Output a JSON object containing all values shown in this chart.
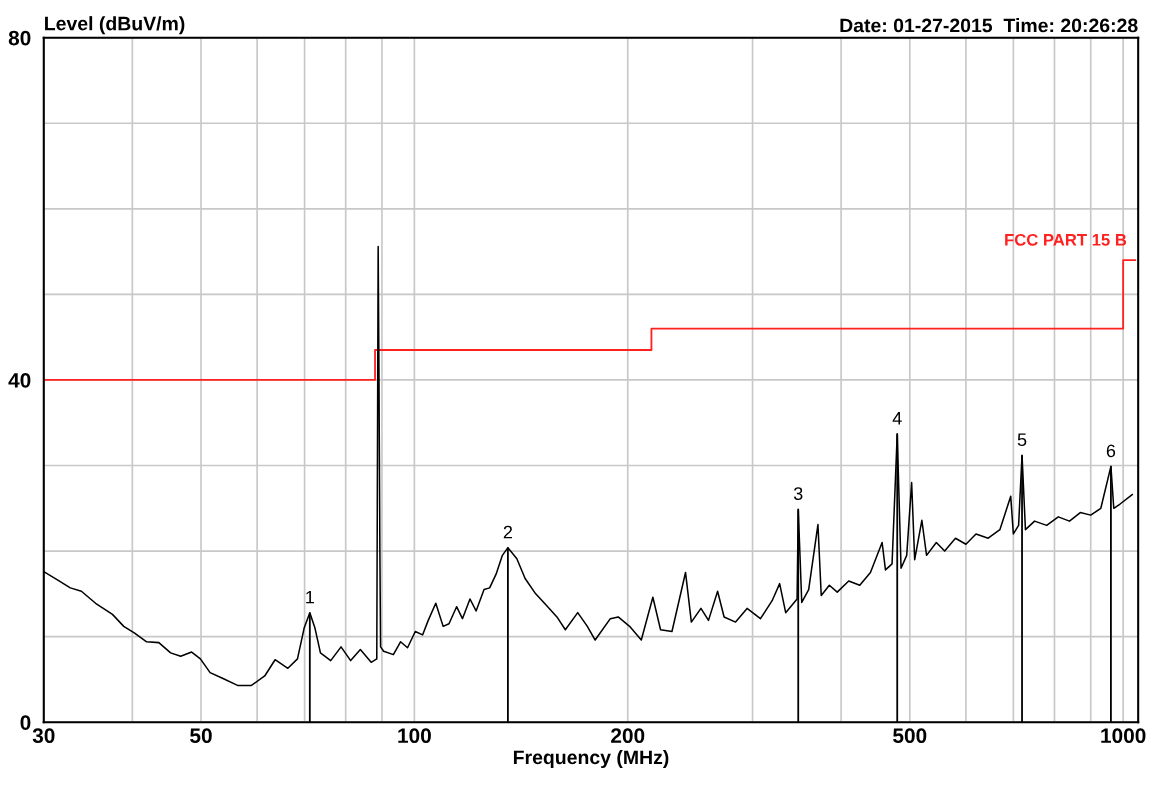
{
  "chart_data": {
    "type": "line",
    "title": "Date: 01-27-2015  Time: 20:26:28",
    "ylabel": "Level (dBuV/m)",
    "xlabel": "Frequency (MHz)",
    "log": "x",
    "xlim": [
      30,
      1050
    ],
    "xticks": [
      30,
      {
        "value": 40,
        "label": null
      },
      50,
      {
        "value": 60,
        "label": null
      },
      {
        "value": 70,
        "label": null
      },
      {
        "value": 80,
        "label": null
      },
      {
        "value": 90,
        "label": null
      },
      100,
      200,
      {
        "value": 300,
        "label": null
      },
      {
        "value": 400,
        "label": null
      },
      500,
      {
        "value": 600,
        "label": null
      },
      {
        "value": 700,
        "label": null
      },
      {
        "value": 800,
        "label": null
      },
      {
        "value": 900,
        "label": null
      },
      1000
    ],
    "ylim": [
      0,
      80
    ],
    "yticks": [
      0,
      {
        "value": 10,
        "label": null
      },
      {
        "value": 20,
        "label": null
      },
      {
        "value": 30,
        "label": null
      },
      40,
      {
        "value": 50,
        "label": null
      },
      {
        "value": 60,
        "label": null
      },
      {
        "value": 70,
        "label": null
      },
      80
    ],
    "grid": true,
    "legend": false,
    "marker": "none",
    "line_style": "solid",
    "series": [
      {
        "color": "#000000",
        "x": [
          30,
          31.4,
          32.7,
          33.9,
          35.5,
          37.5,
          38.9,
          40.3,
          41.9,
          43.6,
          45.3,
          46.8,
          48.5,
          49.9,
          51.5,
          53.7,
          56.3,
          58.9,
          61.5,
          63.6,
          66.3,
          68.4,
          69.9,
          71.2,
          72.4,
          73.7,
          76.2,
          78.8,
          81.3,
          83.9,
          86.9,
          88.5,
          88.7,
          88.9,
          89.1,
          89.4,
          89.6,
          90.5,
          93.4,
          95.6,
          97.8,
          100.3,
          102.7,
          104.6,
          107.2,
          109.8,
          111.9,
          114.7,
          116.9,
          119.8,
          122.2,
          125.4,
          127.7,
          130.4,
          133.1,
          135.5,
          139.5,
          143.3,
          148.3,
          153.4,
          158.9,
          163.3,
          170,
          175.4,
          179.9,
          189,
          193.9,
          201.2,
          209,
          217,
          222.5,
          230.9,
          241.3,
          245.9,
          253.7,
          260,
          267.8,
          273.5,
          283.9,
          294.7,
          307.8,
          319.7,
          327.6,
          334.1,
          346.7,
          348,
          352,
          360,
          371,
          375,
          385,
          395,
          410,
          425,
          440,
          457,
          462,
          472,
          480,
          486,
          495,
          503,
          508,
          520,
          528,
          545,
          560,
          580,
          600,
          620,
          645,
          670,
          694,
          700,
          712,
          720,
          728,
          750,
          780,
          810,
          840,
          870,
          900,
          930,
          961,
          970,
          990,
          1030
        ],
        "values": [
          17.6,
          16.6,
          15.7,
          15.3,
          13.9,
          12.6,
          11.2,
          10.4,
          9.4,
          9.3,
          8.1,
          7.7,
          8.2,
          7.4,
          5.8,
          5.1,
          4.3,
          4.3,
          5.4,
          7.3,
          6.3,
          7.4,
          11.0,
          12.8,
          11.0,
          8.1,
          7.2,
          8.8,
          7.2,
          8.5,
          7.0,
          7.4,
          31.5,
          55.6,
          43.0,
          20.0,
          8.8,
          8.3,
          7.9,
          9.4,
          8.7,
          10.6,
          10.2,
          11.9,
          13.9,
          11.2,
          11.5,
          13.5,
          12.1,
          14.4,
          13.0,
          15.5,
          15.7,
          17.3,
          19.5,
          20.4,
          19.1,
          16.8,
          15.0,
          13.7,
          12.3,
          10.8,
          12.8,
          11.2,
          9.6,
          12.1,
          12.3,
          11.2,
          9.6,
          14.6,
          10.8,
          10.6,
          17.5,
          11.7,
          13.3,
          11.9,
          15.3,
          12.3,
          11.7,
          13.3,
          12.1,
          14.2,
          16.2,
          12.8,
          14.4,
          24.9,
          14.0,
          15.5,
          23.1,
          14.8,
          16.0,
          15.2,
          16.5,
          16.0,
          17.5,
          21.0,
          17.8,
          18.5,
          33.7,
          18.0,
          19.5,
          28.0,
          19.0,
          23.6,
          19.5,
          21.0,
          20.0,
          21.5,
          20.8,
          22.0,
          21.5,
          22.5,
          26.4,
          22.0,
          23.0,
          31.2,
          22.5,
          23.5,
          23.0,
          24.0,
          23.5,
          24.5,
          24.2,
          25.0,
          29.9,
          25.0,
          25.5,
          26.6
        ]
      },
      {
        "type": "step",
        "name": "FCC PART 15 B",
        "color": "#ff2020",
        "x": [
          30,
          88,
          216,
          1000,
          1040
        ],
        "values": [
          40,
          43.5,
          46,
          54,
          54
        ]
      }
    ],
    "annotations": [
      {
        "text": "1",
        "x": 71.2,
        "y": 12.8
      },
      {
        "text": "2",
        "x": 135.5,
        "y": 20.4
      },
      {
        "text": "3",
        "x": 348,
        "y": 24.9
      },
      {
        "text": "4",
        "x": 480,
        "y": 33.7
      },
      {
        "text": "5",
        "x": 720,
        "y": 31.2
      },
      {
        "text": "6",
        "x": 961,
        "y": 29.9
      }
    ]
  }
}
